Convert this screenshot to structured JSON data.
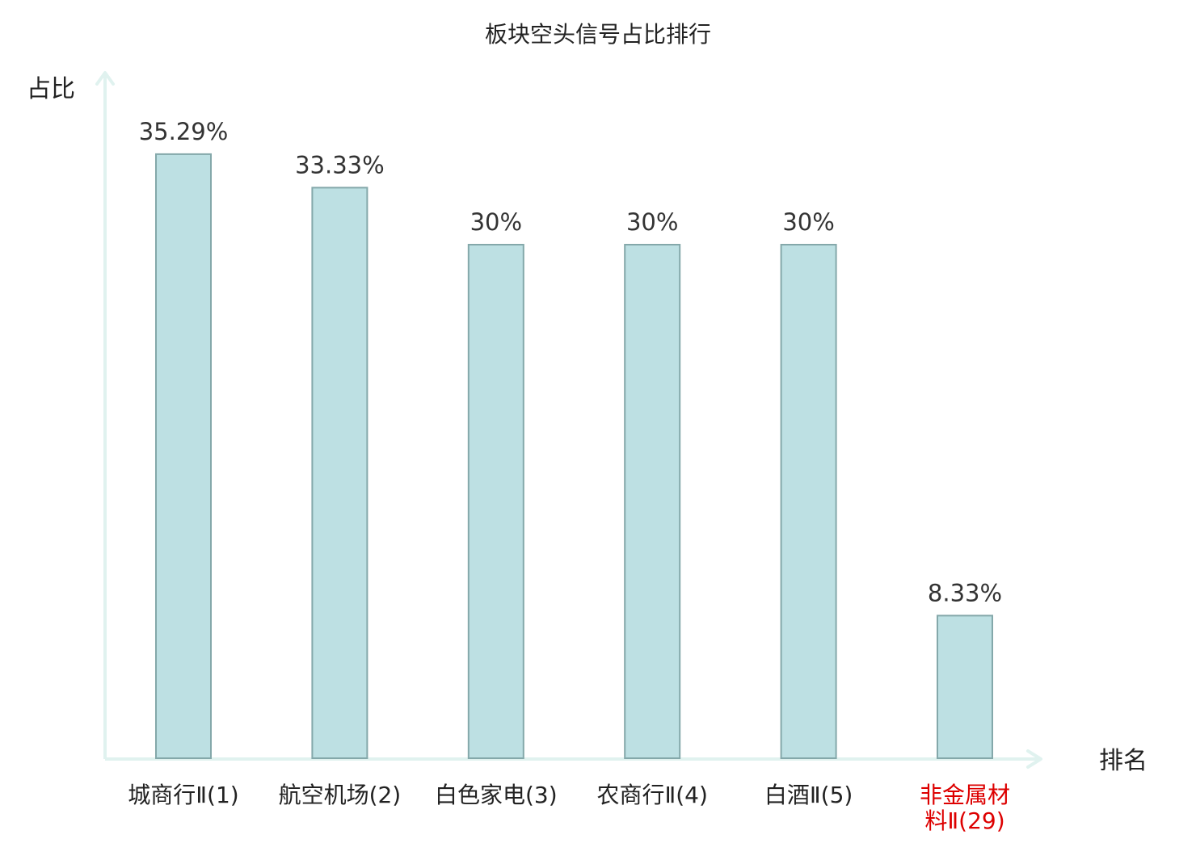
{
  "chart_data": {
    "type": "bar",
    "title": "板块空头信号占比排行",
    "ylabel": "占比",
    "xlabel": "排名",
    "categories": [
      [
        "城商行Ⅱ(1)"
      ],
      [
        "航空机场(2)"
      ],
      [
        "白色家电(3)"
      ],
      [
        "农商行Ⅱ(4)"
      ],
      [
        "白酒Ⅱ(5)"
      ],
      [
        "非金属材",
        "料Ⅱ(29)"
      ]
    ],
    "values": [
      35.29,
      33.33,
      30,
      30,
      30,
      8.33
    ],
    "value_labels": [
      "35.29%",
      "33.33%",
      "30%",
      "30%",
      "30%",
      "8.33%"
    ],
    "highlight_index": 5,
    "ylim": [
      0,
      36
    ],
    "grid": false,
    "legend": "none",
    "colors": {
      "bar_fill": "#bde0e3",
      "bar_stroke": "#84a8aa",
      "axis": "#e0f2ef",
      "text": "#222222",
      "value_text": "#333333",
      "highlight_text": "#dd0000"
    }
  }
}
